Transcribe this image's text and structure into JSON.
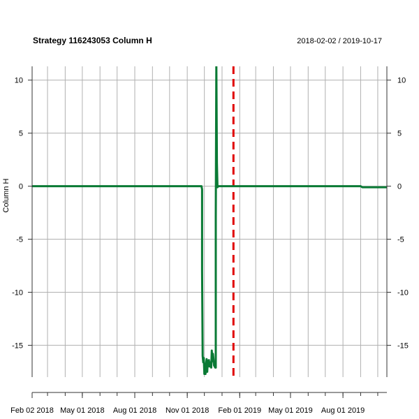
{
  "chart_data": {
    "type": "line",
    "title": "Strategy 116243053 Column H",
    "date_range": "2018-02-02 / 2019-10-17",
    "ylabel": "Column H",
    "xlabel": "",
    "x_range": [
      "2018-02-02",
      "2019-10-17"
    ],
    "ylim": [
      -18,
      11.3
    ],
    "y_ticks": [
      10,
      5,
      0,
      -5,
      -10,
      -15
    ],
    "x_tick_labels": [
      {
        "date": "2018-02-02",
        "label": "Feb 02 2018"
      },
      {
        "date": "2018-05-01",
        "label": "May 01 2018"
      },
      {
        "date": "2018-08-01",
        "label": "Aug 01 2018"
      },
      {
        "date": "2018-11-01",
        "label": "Nov 01 2018"
      },
      {
        "date": "2019-02-01",
        "label": "Feb 01 2019"
      },
      {
        "date": "2019-05-01",
        "label": "May 01 2019"
      },
      {
        "date": "2019-08-01",
        "label": "Aug 01 2019"
      }
    ],
    "grid": true,
    "vline": {
      "date": "2019-01-21",
      "color": "#e00000",
      "style": "dashed"
    },
    "series": [
      {
        "color": "#0a7a35",
        "points": [
          [
            "2018-02-02",
            0
          ],
          [
            "2018-11-26",
            0
          ],
          [
            "2018-11-27",
            -0.3
          ],
          [
            "2018-11-27",
            -8
          ],
          [
            "2018-11-28",
            -16
          ],
          [
            "2018-11-29",
            -16.6
          ],
          [
            "2018-11-30",
            -16.2
          ],
          [
            "2018-12-01",
            -17.7
          ],
          [
            "2018-12-03",
            -17.7
          ],
          [
            "2018-12-04",
            -16.7
          ],
          [
            "2018-12-05",
            -16.3
          ],
          [
            "2018-12-06",
            -17.5
          ],
          [
            "2018-12-07",
            -16.5
          ],
          [
            "2018-12-09",
            -16.4
          ],
          [
            "2018-12-10",
            -17.0
          ],
          [
            "2018-12-12",
            -16.6
          ],
          [
            "2018-12-13",
            -17.1
          ],
          [
            "2018-12-14",
            -15.5
          ],
          [
            "2018-12-15",
            -16.5
          ],
          [
            "2018-12-16",
            -15.8
          ],
          [
            "2018-12-17",
            -16.3
          ],
          [
            "2018-12-18",
            -16.9
          ],
          [
            "2018-12-20",
            -17.1
          ],
          [
            "2018-12-21",
            -17.1
          ],
          [
            "2018-12-21",
            -3
          ],
          [
            "2018-12-22",
            11.5
          ],
          [
            "2018-12-23",
            2.2
          ],
          [
            "2018-12-24",
            -0.1
          ],
          [
            "2018-12-25",
            0
          ],
          [
            "2019-09-01",
            0
          ],
          [
            "2019-09-04",
            -0.1
          ],
          [
            "2019-10-17",
            -0.1
          ]
        ]
      }
    ]
  }
}
